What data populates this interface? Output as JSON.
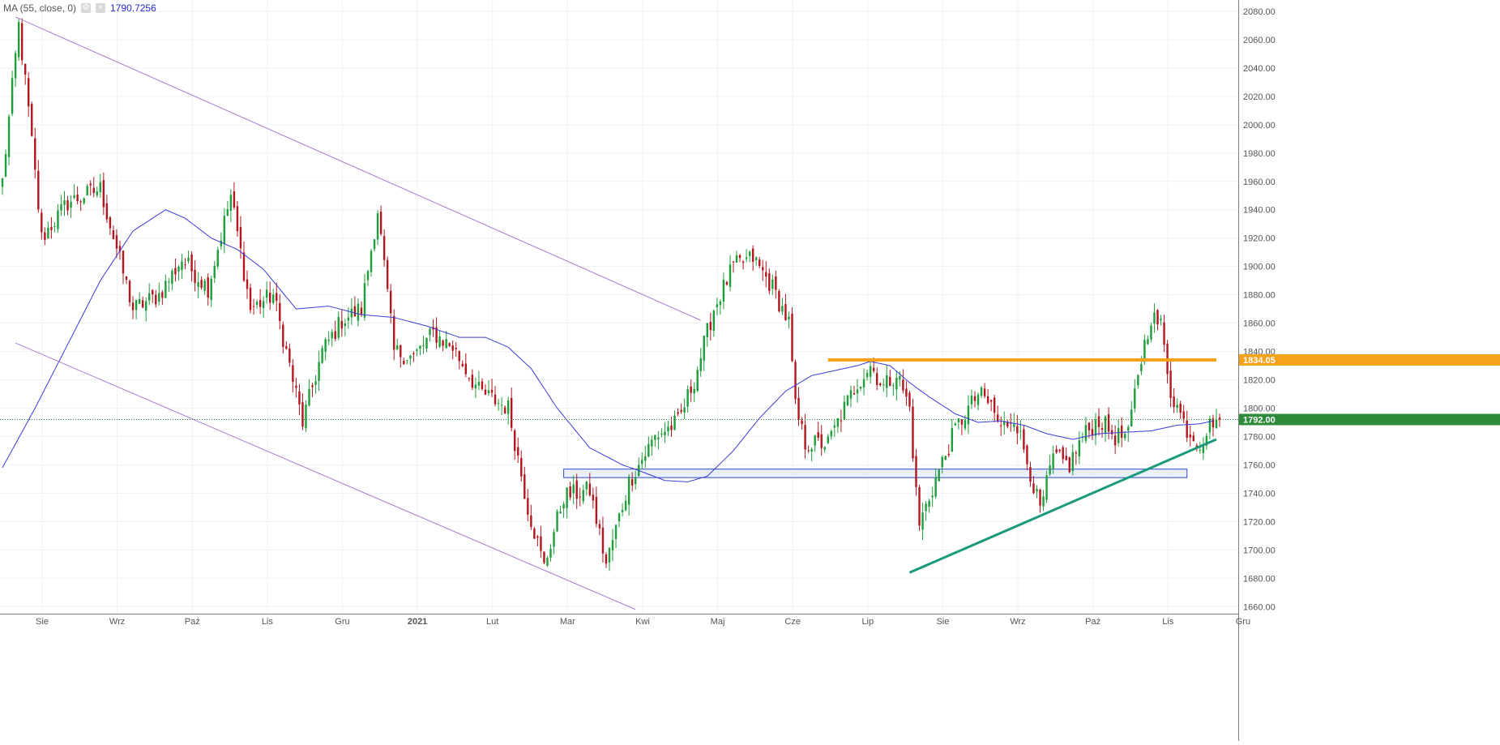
{
  "indicator": {
    "label": "MA (55, close, 0)",
    "value": "1790.7256"
  },
  "chart_data": {
    "type": "candlestick",
    "indicator_series": "MA (55, close, 0)",
    "last_price": 1792.0,
    "last_price_label": "1792.00",
    "resistance_level": 1834.05,
    "resistance_label": "1834.05",
    "ylim": [
      1655,
      2088
    ],
    "y_ticks": [
      1660,
      1680,
      1700,
      1720,
      1740,
      1760,
      1780,
      1800,
      1820,
      1840,
      1860,
      1880,
      1900,
      1920,
      1940,
      1960,
      1980,
      2000,
      2020,
      2040,
      2060,
      2080
    ],
    "y_tick_labels": [
      "1660.00",
      "1680.00",
      "1700.00",
      "1720.00",
      "1740.00",
      "1760.00",
      "1780.00",
      "1800.00",
      "1820.00",
      "1840.00",
      "1860.00",
      "1880.00",
      "1900.00",
      "1920.00",
      "1940.00",
      "1960.00",
      "1980.00",
      "2000.00",
      "2020.00",
      "2040.00",
      "2060.00",
      "2080.00"
    ],
    "x_labels": [
      "Sie",
      "Wrz",
      "Paź",
      "Lis",
      "Gru",
      "2021",
      "Lut",
      "Mar",
      "Kwi",
      "Maj",
      "Cze",
      "Lip",
      "Sie",
      "Wrz",
      "Paź",
      "Lis",
      "Gru"
    ],
    "x_label_pos": [
      0,
      23,
      46,
      69,
      92,
      115,
      138,
      161,
      184,
      207,
      230,
      253,
      276,
      299,
      322,
      345,
      368
    ],
    "bars_count": 374,
    "anchors_close": [
      [
        0,
        1960
      ],
      [
        5,
        2070
      ],
      [
        8,
        2010
      ],
      [
        12,
        1920
      ],
      [
        20,
        1945
      ],
      [
        30,
        1955
      ],
      [
        40,
        1870
      ],
      [
        48,
        1880
      ],
      [
        55,
        1905
      ],
      [
        63,
        1885
      ],
      [
        70,
        1950
      ],
      [
        76,
        1870
      ],
      [
        83,
        1880
      ],
      [
        92,
        1790
      ],
      [
        98,
        1840
      ],
      [
        104,
        1862
      ],
      [
        110,
        1870
      ],
      [
        115,
        1940
      ],
      [
        120,
        1840
      ],
      [
        126,
        1836
      ],
      [
        132,
        1853
      ],
      [
        138,
        1843
      ],
      [
        146,
        1812
      ],
      [
        155,
        1800
      ],
      [
        161,
        1730
      ],
      [
        166,
        1688
      ],
      [
        172,
        1738
      ],
      [
        180,
        1742
      ],
      [
        185,
        1690
      ],
      [
        192,
        1748
      ],
      [
        200,
        1780
      ],
      [
        207,
        1790
      ],
      [
        212,
        1820
      ],
      [
        218,
        1870
      ],
      [
        224,
        1900
      ],
      [
        230,
        1906
      ],
      [
        236,
        1885
      ],
      [
        241,
        1860
      ],
      [
        243,
        1800
      ],
      [
        246,
        1775
      ],
      [
        253,
        1775
      ],
      [
        258,
        1800
      ],
      [
        262,
        1818
      ],
      [
        266,
        1830
      ],
      [
        270,
        1815
      ],
      [
        274,
        1825
      ],
      [
        278,
        1800
      ],
      [
        280,
        1740
      ],
      [
        281,
        1718
      ],
      [
        286,
        1750
      ],
      [
        292,
        1785
      ],
      [
        299,
        1810
      ],
      [
        303,
        1802
      ],
      [
        306,
        1785
      ],
      [
        310,
        1795
      ],
      [
        315,
        1755
      ],
      [
        318,
        1727
      ],
      [
        322,
        1765
      ],
      [
        327,
        1760
      ],
      [
        331,
        1780
      ],
      [
        336,
        1792
      ],
      [
        341,
        1780
      ],
      [
        345,
        1780
      ],
      [
        348,
        1825
      ],
      [
        352,
        1865
      ],
      [
        355,
        1858
      ],
      [
        358,
        1812
      ],
      [
        363,
        1785
      ],
      [
        367,
        1775
      ],
      [
        371,
        1792
      ]
    ],
    "anchors_ma": [
      [
        0,
        1758
      ],
      [
        10,
        1800
      ],
      [
        20,
        1845
      ],
      [
        30,
        1890
      ],
      [
        40,
        1925
      ],
      [
        50,
        1940
      ],
      [
        56,
        1934
      ],
      [
        64,
        1920
      ],
      [
        72,
        1912
      ],
      [
        80,
        1898
      ],
      [
        90,
        1870
      ],
      [
        100,
        1872
      ],
      [
        110,
        1866
      ],
      [
        120,
        1864
      ],
      [
        130,
        1858
      ],
      [
        140,
        1850
      ],
      [
        148,
        1850
      ],
      [
        155,
        1843
      ],
      [
        162,
        1828
      ],
      [
        170,
        1800
      ],
      [
        180,
        1772
      ],
      [
        190,
        1760
      ],
      [
        195,
        1756
      ],
      [
        203,
        1749
      ],
      [
        210,
        1748
      ],
      [
        216,
        1752
      ],
      [
        224,
        1770
      ],
      [
        232,
        1793
      ],
      [
        240,
        1812
      ],
      [
        248,
        1823
      ],
      [
        256,
        1827
      ],
      [
        262,
        1830
      ],
      [
        266,
        1833
      ],
      [
        272,
        1830
      ],
      [
        278,
        1818
      ],
      [
        284,
        1808
      ],
      [
        292,
        1796
      ],
      [
        299,
        1790
      ],
      [
        306,
        1791
      ],
      [
        313,
        1788
      ],
      [
        320,
        1782
      ],
      [
        328,
        1778
      ],
      [
        336,
        1782
      ],
      [
        344,
        1783
      ],
      [
        352,
        1784
      ],
      [
        360,
        1788
      ],
      [
        367,
        1789
      ],
      [
        371,
        1791
      ]
    ],
    "annotations": {
      "channel_upper": [
        [
          4,
          2076
        ],
        [
          214,
          1862
        ]
      ],
      "channel_lower": [
        [
          4,
          1846
        ],
        [
          194,
          1658
        ]
      ],
      "rising_trendline": [
        [
          278,
          1684
        ],
        [
          372,
          1778
        ]
      ],
      "resistance_line": [
        [
          253,
          1834.05
        ],
        [
          372,
          1834.05
        ]
      ],
      "support_zone": {
        "x_from": 172,
        "x_to": 363,
        "y_low": 1751,
        "y_high": 1757
      }
    },
    "colors": {
      "up": "#1e9e3a",
      "down": "#b2161e",
      "ma": "#3b3bd6",
      "channel": "#a77ccf",
      "trendline": "#1a9a7a",
      "resistance": "#f7a21b",
      "zone_border": "#2e49c8",
      "zone_fill": "#eaf0fb",
      "last_price": "#2e8b3a"
    }
  }
}
